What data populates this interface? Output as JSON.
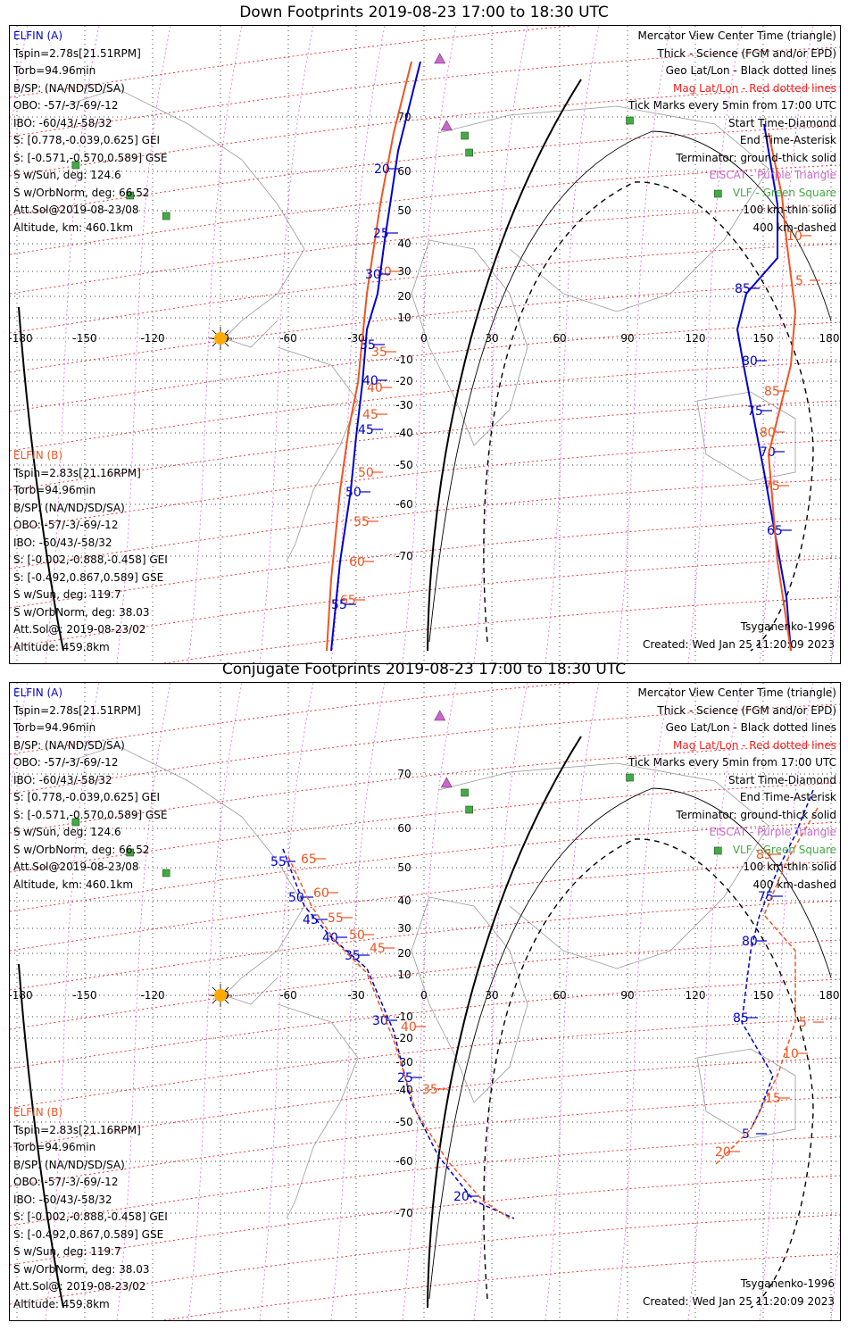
{
  "panels": [
    {
      "title": "Down Footprints 2019-08-23 17:00 to 18:30 UTC",
      "mode": "down",
      "elfin_a": {
        "label": "ELFIN (A)",
        "lines": [
          "Tspin=2.78s[21.51RPM]",
          "Torb=94.96min",
          "B/SP: (NA/ND/SD/SA)",
          "OBO: -57/-3/-69/-12",
          "IBO: -60/43/-58/32",
          "S: [0.778,-0.039,0.625] GEI",
          "S: [-0.571,-0.570,0.589] GSE",
          "S w/Sun, deg: 124.6",
          "S w/OrbNorm, deg: 66.52",
          "Att.Sol@2019-08-23/08",
          "Altitude, km: 460.1km"
        ]
      },
      "elfin_b": {
        "label": "ELFIN (B)",
        "lines": [
          "Tspin=2.83s[21.16RPM]",
          "Torb=94.96min",
          "B/SP: (NA/ND/SD/SA)",
          "OBO: -57/-3/-69/-12",
          "IBO: -60/43/-58/32",
          "S: [-0.002,-0.888,-0.458] GEI",
          "S: [-0.492,0.867,0.589] GSE",
          "S w/Sun, deg: 119.7",
          "S w/OrbNorm, deg: 38.03",
          "Att.Sol@: 2019-08-23/02",
          "Altitude: 459.8km"
        ]
      },
      "legend": [
        "Mercator View Center Time (triangle)",
        "Thick - Science (FGM and/or EPD)",
        "Geo Lat/Lon - Black dotted lines",
        "Mag Lat/Lon - Red dotted lines",
        "Tick Marks every 5min from 17:00 UTC",
        "Start Time-Diamond",
        "End Time-Asterisk",
        "Terminator: ground-thick solid",
        "EISCAT - Purple Triangle",
        "VLF - Green Square",
        "100 km-thin solid",
        "400 km-dashed"
      ],
      "model": "Tsyganenko-1996",
      "created": "Created: Wed Jan 25 11:20:09 2023",
      "track_a_labels": [
        "20",
        "25",
        "30",
        "35",
        "40",
        "45",
        "50",
        "55",
        "65",
        "70",
        "75",
        "80",
        "85"
      ],
      "track_b_labels": [
        "30",
        "35",
        "40",
        "45",
        "50",
        "55",
        "60",
        "65",
        "75",
        "80",
        "85",
        "5",
        "10"
      ]
    },
    {
      "title": "Conjugate Footprints 2019-08-23 17:00 to 18:30 UTC",
      "mode": "conj",
      "elfin_a": {
        "label": "ELFIN (A)",
        "lines": [
          "Tspin=2.78s[21.51RPM]",
          "Torb=94.96min",
          "B/SP: (NA/ND/SD/SA)",
          "OBO: -57/-3/-69/-12",
          "IBO: -60/43/-58/32",
          "S: [0.778,-0.039,0.625] GEI",
          "S: [-0.571,-0.570,0.589] GSE",
          "S w/Sun, deg: 124.6",
          "S w/OrbNorm, deg: 66.52",
          "Att.Sol@2019-08-23/08",
          "Altitude, km: 460.1km"
        ]
      },
      "elfin_b": {
        "label": "ELFIN (B)",
        "lines": [
          "Tspin=2.83s[21.16RPM]",
          "Torb=94.96min",
          "B/SP: (NA/ND/SD/SA)",
          "OBO: -57/-3/-69/-12",
          "IBO: -60/43/-58/32",
          "S: [-0.002,-0.888,-0.458] GEI",
          "S: [-0.492,0.867,0.589] GSE",
          "S w/Sun, deg: 119.7",
          "S w/OrbNorm, deg: 38.03",
          "Att.Sol@: 2019-08-23/02",
          "Altitude: 459.8km"
        ]
      },
      "legend": [
        "Mercator View Center Time (triangle)",
        "Thick - Science (FGM and/or EPD)",
        "Geo Lat/Lon - Black dotted lines",
        "Mag Lat/Lon - Red dotted lines",
        "Tick Marks every 5min from 17:00 UTC",
        "Start Time-Diamond",
        "End Time-Asterisk",
        "Terminator: ground-thick solid",
        "EISCAT - Purple Triangle",
        "VLF - Green Square",
        "100 km-thin solid",
        "400 km-dashed"
      ],
      "model": "Tsyganenko-1996",
      "created": "Created: Wed Jan 25 11:20:09 2023",
      "track_a_labels": [
        "55",
        "50",
        "45",
        "40",
        "35",
        "30",
        "25",
        "20",
        "85",
        "80",
        "75",
        "5"
      ],
      "track_b_labels": [
        "65",
        "60",
        "55",
        "50",
        "45",
        "40",
        "35",
        "85",
        "15",
        "10",
        "5",
        "20"
      ]
    }
  ],
  "map_axes": {
    "lon_ticks": [
      "-180",
      "-150",
      "-120",
      "-90",
      "-60",
      "-30",
      "0",
      "30",
      "60",
      "90",
      "120",
      "150",
      "180"
    ],
    "lat_ticks": [
      "70",
      "60",
      "50",
      "40",
      "30",
      "20",
      "10",
      "-10",
      "-20",
      "-30",
      "-40",
      "-50",
      "-60",
      "-70"
    ],
    "lon_range": [
      -180,
      180
    ],
    "lat_range": [
      -80,
      80
    ]
  },
  "colors": {
    "elfin_a": "#0000cc",
    "elfin_b": "#ee5522",
    "mag_grid": "#ee2222",
    "eiscat": "#cc66cc",
    "vlf": "#44aa44",
    "sun": "#ffaa00"
  }
}
